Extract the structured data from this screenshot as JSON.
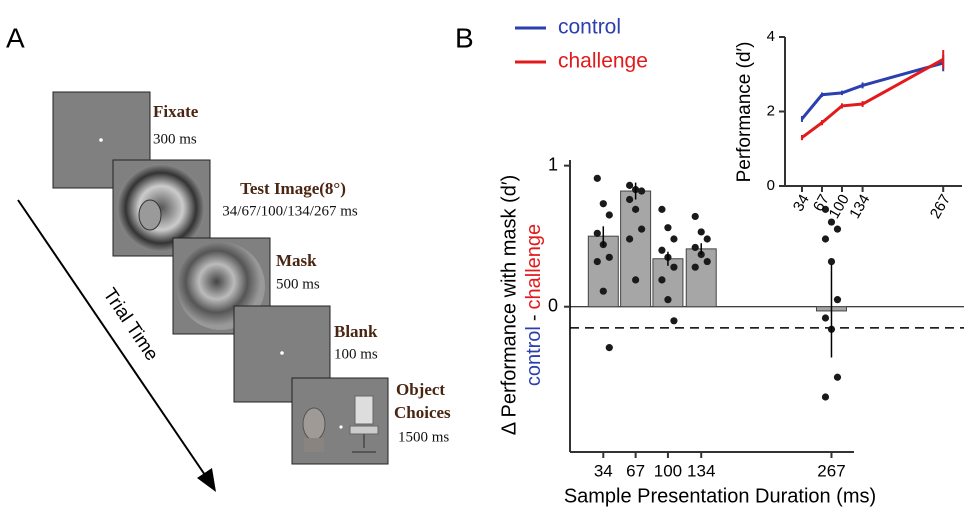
{
  "panel_a": {
    "label": "A",
    "steps": [
      {
        "title": "Fixate",
        "duration": "300 ms"
      },
      {
        "title": "Test Image(8°)",
        "duration": "34/67/100/134/267 ms"
      },
      {
        "title": "Mask",
        "duration": "500 ms"
      },
      {
        "title": "Blank",
        "duration": "100 ms"
      },
      {
        "title": [
          "Object",
          "Choices"
        ],
        "duration": "1500 ms"
      }
    ],
    "arrow_label": "Trial Time"
  },
  "panel_b_label": "B",
  "chart_data": [
    {
      "type": "bar",
      "x": [
        34,
        67,
        100,
        134,
        267
      ],
      "values": [
        0.5,
        0.82,
        0.34,
        0.41,
        -0.03
      ],
      "errors": [
        0.07,
        0.06,
        0.05,
        0.04,
        0.33
      ],
      "points": [
        [
          0.91,
          0.73,
          0.65,
          0.52,
          0.44,
          0.35,
          0.32,
          0.11,
          -0.29
        ],
        [
          0.86,
          0.83,
          0.82,
          0.76,
          0.69,
          0.55,
          0.48,
          0.19
        ],
        [
          0.69,
          0.56,
          0.48,
          0.4,
          0.35,
          0.28,
          0.19,
          0.05,
          -0.1
        ],
        [
          0.64,
          0.53,
          0.48,
          0.42,
          0.37,
          0.32,
          0.28
        ],
        [
          0.69,
          0.6,
          0.55,
          0.48,
          0.32,
          0.05,
          -0.08,
          -0.16,
          -0.5,
          -0.64
        ]
      ],
      "color": "#a6a6a6",
      "point_color": "#1a1a1a",
      "xlim": [
        0,
        290
      ],
      "xticks": [
        34,
        67,
        100,
        134,
        267
      ],
      "ylim": [
        -1.03,
        1.04
      ],
      "yticks": [
        0,
        1
      ],
      "hline": 0,
      "reference_line": -0.15,
      "x_label": "Sample Presentation Duration (ms)",
      "y_label": "Δ Performance with mask (d′)",
      "y_label_2": [
        {
          "text": "control",
          "color": "#2b3fae"
        },
        {
          "text": "-",
          "color": "#111111"
        },
        {
          "text": "challenge",
          "color": "#e31a1c"
        }
      ]
    },
    {
      "type": "line",
      "x": [
        34,
        67,
        100,
        134,
        267
      ],
      "series": [
        {
          "name": "control",
          "color": "#2b3fae",
          "values": [
            1.8,
            2.45,
            2.5,
            2.7,
            3.3
          ],
          "errors": [
            0.08,
            0.06,
            0.06,
            0.08,
            0.22
          ]
        },
        {
          "name": "challenge",
          "color": "#e31a1c",
          "values": [
            1.3,
            1.7,
            2.15,
            2.2,
            3.4
          ],
          "errors": [
            0.07,
            0.07,
            0.07,
            0.08,
            0.25
          ]
        }
      ],
      "xlim": [
        6,
        298
      ],
      "xticks": [
        34,
        67,
        100,
        134,
        267
      ],
      "ylim": [
        0,
        4
      ],
      "yticks": [
        0,
        2,
        4
      ],
      "y_label": "Performance (d′)"
    }
  ]
}
